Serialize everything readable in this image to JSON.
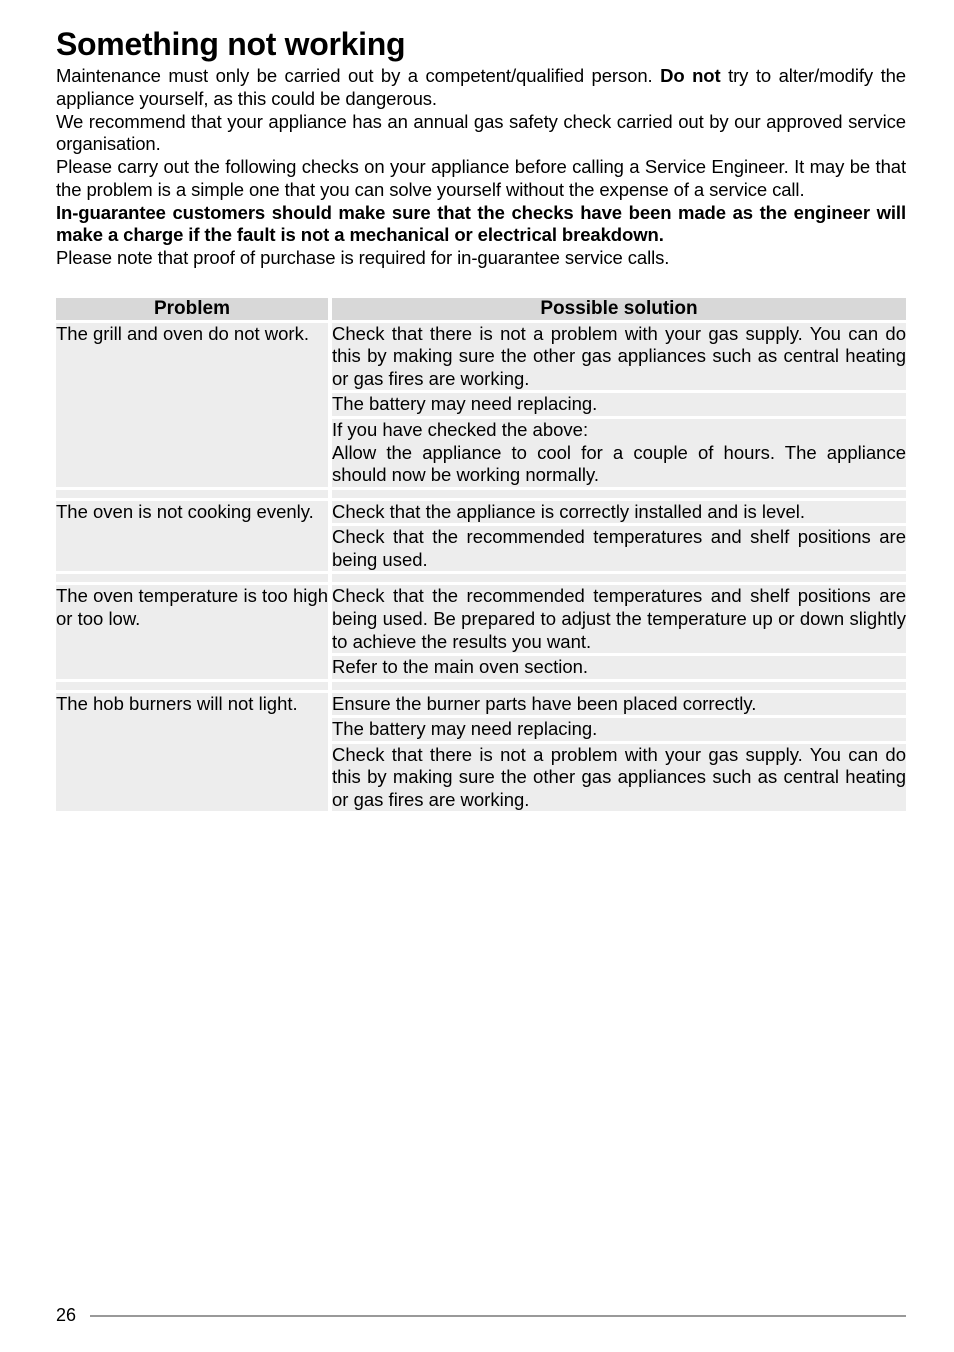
{
  "title": "Something not working",
  "intro": {
    "p1a": "Maintenance must only be carried out by a competent/qualified person.  ",
    "p1b_bold": "Do not",
    "p1c": " try to alter/modify the appliance yourself, as this could be dangerous.",
    "p2": "We recommend that your appliance has an annual gas safety check carried out by our approved service organisation.",
    "p3": "Please carry out the following checks on your appliance before calling a Service Engineer.  It may be that the problem is a simple one that you can solve yourself without the expense of a service call.",
    "p4_bold": "In-guarantee customers should make sure that the checks have been made as the engineer will make a charge if the fault is not a mechanical or electrical breakdown.",
    "p5": "Please note that proof of purchase is required for in-guarantee service calls."
  },
  "table": {
    "header_problem": "Problem",
    "header_solution": "Possible solution",
    "groups": [
      {
        "problem": "The grill and oven do not work.",
        "solutions": [
          "Check that there is not a problem with your gas supply.  You can do this by making sure the other gas appliances such as central heating or gas fires are working.",
          "The battery may need replacing.",
          "If you have checked the above:\nAllow the appliance to cool for a couple of hours.  The appliance should now be working normally."
        ]
      },
      {
        "problem": "The oven is not cooking evenly.",
        "solutions": [
          "Check that the appliance is correctly installed and is level.",
          "Check that the recommended temperatures and shelf positions are being used."
        ]
      },
      {
        "problem": "The oven temperature is too high or too low.",
        "solutions": [
          "Check that the recommended temperatures and shelf positions are being used.  Be prepared to adjust the temperature up or down slightly to achieve the results you want.",
          "Refer to the main oven section."
        ]
      },
      {
        "problem": "The hob burners will not light.",
        "solutions": [
          "Ensure the burner parts have been placed correctly.",
          "The battery may need replacing.",
          "Check that there is not a problem with your gas supply.  You can do this by making sure the other gas appliances such as central heating or gas fires are working."
        ]
      }
    ]
  },
  "page_number": "26",
  "colors": {
    "header_bg": "#d8d8d8",
    "cell_bg": "#ededed",
    "rule": "#999999"
  }
}
